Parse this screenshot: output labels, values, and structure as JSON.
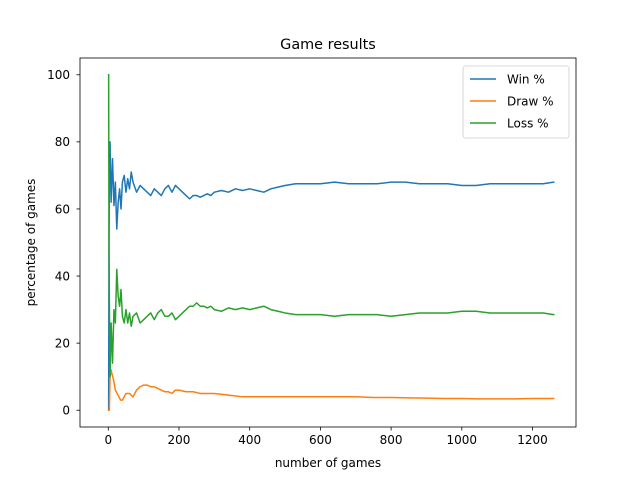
{
  "chart_data": {
    "type": "line",
    "title": "Game results",
    "xlabel": "number of games",
    "ylabel": "percentage of games",
    "xlim": [
      -80,
      1323
    ],
    "ylim": [
      -5,
      105
    ],
    "xticks": [
      0,
      200,
      400,
      600,
      800,
      1000,
      1200
    ],
    "yticks": [
      0,
      20,
      40,
      60,
      80,
      100
    ],
    "grid": false,
    "legend": {
      "position": "top-right"
    },
    "series": [
      {
        "name": "Win %",
        "color": "#1f77b4",
        "x": [
          1,
          2,
          3,
          5,
          8,
          12,
          16,
          20,
          24,
          28,
          32,
          36,
          40,
          45,
          50,
          55,
          60,
          65,
          70,
          80,
          90,
          100,
          110,
          120,
          130,
          140,
          150,
          160,
          170,
          180,
          190,
          200,
          210,
          220,
          230,
          240,
          250,
          260,
          270,
          280,
          290,
          300,
          320,
          340,
          360,
          380,
          400,
          420,
          440,
          460,
          480,
          500,
          530,
          560,
          600,
          640,
          680,
          720,
          760,
          800,
          840,
          880,
          920,
          960,
          1000,
          1040,
          1080,
          1120,
          1160,
          1200,
          1230,
          1260
        ],
        "y": [
          0,
          50,
          67,
          80,
          62,
          75,
          61,
          68,
          54,
          62,
          66,
          60,
          68,
          70,
          65,
          69,
          66,
          71,
          68,
          65,
          67,
          66,
          65,
          64,
          66,
          65,
          64,
          66,
          67,
          65,
          67,
          66,
          65,
          64,
          63,
          64,
          64,
          63.5,
          64,
          64.5,
          64,
          65,
          65.5,
          65,
          66,
          65.5,
          66,
          65.5,
          65,
          66,
          66.5,
          67,
          67.5,
          67.5,
          67.5,
          68,
          67.5,
          67.5,
          67.5,
          68,
          68,
          67.5,
          67.5,
          67.5,
          67,
          67,
          67.5,
          67.5,
          67.5,
          67.5,
          67.5,
          68
        ]
      },
      {
        "name": "Draw %",
        "color": "#ff7f0e",
        "x": [
          1,
          2,
          3,
          5,
          8,
          10,
          15,
          20,
          25,
          30,
          35,
          40,
          50,
          60,
          70,
          80,
          90,
          100,
          110,
          120,
          130,
          140,
          150,
          160,
          170,
          180,
          190,
          200,
          220,
          240,
          260,
          280,
          300,
          340,
          380,
          420,
          460,
          500,
          550,
          600,
          650,
          700,
          750,
          800,
          850,
          900,
          950,
          1000,
          1050,
          1100,
          1150,
          1200,
          1260
        ],
        "y": [
          0,
          0,
          0,
          10,
          12,
          11,
          9,
          6,
          5,
          4,
          3,
          3,
          5,
          5,
          4,
          6,
          7,
          7.5,
          7.5,
          7,
          7,
          6.5,
          6,
          5.5,
          5.5,
          5,
          6,
          6,
          5.5,
          5.5,
          5,
          5,
          5,
          4.5,
          4,
          4,
          4,
          4,
          4,
          4,
          4,
          4,
          3.8,
          3.8,
          3.7,
          3.6,
          3.5,
          3.5,
          3.4,
          3.4,
          3.4,
          3.5,
          3.5
        ]
      },
      {
        "name": "Loss %",
        "color": "#2ca02c",
        "x": [
          1,
          2,
          3,
          5,
          8,
          12,
          16,
          20,
          24,
          28,
          32,
          36,
          40,
          45,
          50,
          55,
          60,
          65,
          70,
          80,
          90,
          100,
          110,
          120,
          130,
          140,
          150,
          160,
          170,
          180,
          190,
          200,
          210,
          220,
          230,
          240,
          250,
          260,
          270,
          280,
          290,
          300,
          320,
          340,
          360,
          380,
          400,
          420,
          440,
          460,
          480,
          500,
          530,
          560,
          600,
          640,
          680,
          720,
          760,
          800,
          840,
          880,
          920,
          960,
          1000,
          1040,
          1080,
          1120,
          1160,
          1200,
          1230,
          1260
        ],
        "y": [
          100,
          50,
          33,
          10,
          26,
          14,
          30,
          26,
          42,
          34,
          31,
          36,
          28,
          26,
          30,
          26,
          29,
          25,
          28,
          29,
          26,
          27,
          28,
          29,
          27,
          29,
          30,
          28,
          28,
          29,
          27,
          28,
          29,
          30,
          31,
          31,
          32,
          31,
          31,
          30.5,
          31,
          30,
          29.5,
          30.5,
          30,
          30.5,
          30,
          30.5,
          31,
          30,
          29.5,
          29,
          28.5,
          28.5,
          28.5,
          28,
          28.5,
          28.5,
          28.5,
          28,
          28.5,
          29,
          29,
          29,
          29.5,
          29.5,
          29,
          29,
          29,
          29,
          29,
          28.5
        ]
      }
    ]
  }
}
